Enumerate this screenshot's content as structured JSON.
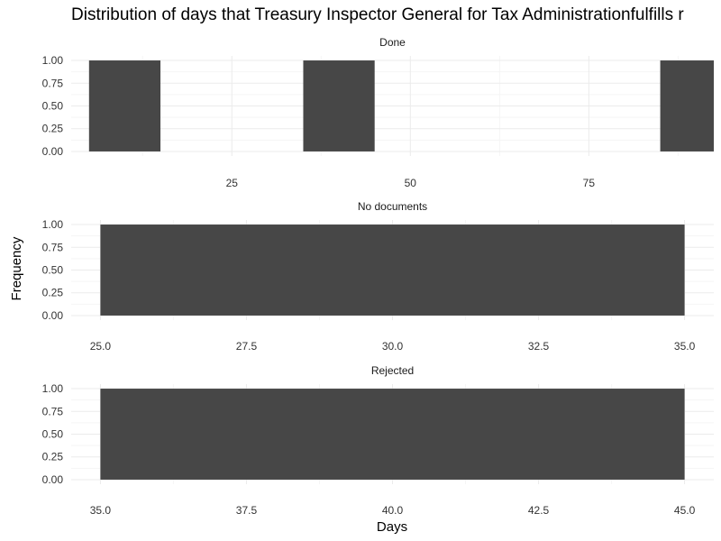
{
  "chart_data": {
    "type": "bar",
    "title": "Distribution of days that Treasury Inspector General for Tax Administrationfulfills r",
    "xlabel": "Days",
    "ylabel": "Frequency",
    "grid": true,
    "colors": {
      "bar": "#474747",
      "grid_major": "#ebebeb",
      "grid_minor": "#f5f5f5"
    },
    "panels": [
      {
        "label": "Done",
        "xlim": [
          2.5,
          92.5
        ],
        "x_ticks": [
          25,
          50,
          75
        ],
        "x_tick_labels": [
          "25",
          "50",
          "75"
        ],
        "ylim": [
          0,
          1
        ],
        "y_ticks": [
          0,
          0.25,
          0.5,
          0.75,
          1
        ],
        "y_tick_labels": [
          "0.00",
          "0.25",
          "0.50",
          "0.75",
          "1.00"
        ],
        "bars": [
          {
            "x0": 5,
            "x1": 15,
            "value": 1
          },
          {
            "x0": 35,
            "x1": 45,
            "value": 1
          },
          {
            "x0": 85,
            "x1": 95,
            "value": 1
          }
        ]
      },
      {
        "label": "No documents",
        "xlim": [
          24.5,
          35.5
        ],
        "x_ticks": [
          25,
          27.5,
          30,
          32.5,
          35
        ],
        "x_tick_labels": [
          "25.0",
          "27.5",
          "30.0",
          "32.5",
          "35.0"
        ],
        "ylim": [
          0,
          1
        ],
        "y_ticks": [
          0,
          0.25,
          0.5,
          0.75,
          1
        ],
        "y_tick_labels": [
          "0.00",
          "0.25",
          "0.50",
          "0.75",
          "1.00"
        ],
        "bars": [
          {
            "x0": 25,
            "x1": 35,
            "value": 1
          }
        ]
      },
      {
        "label": "Rejected",
        "xlim": [
          34.5,
          45.5
        ],
        "x_ticks": [
          35,
          37.5,
          40,
          42.5,
          45
        ],
        "x_tick_labels": [
          "35.0",
          "37.5",
          "40.0",
          "42.5",
          "45.0"
        ],
        "ylim": [
          0,
          1
        ],
        "y_ticks": [
          0,
          0.25,
          0.5,
          0.75,
          1
        ],
        "y_tick_labels": [
          "0.00",
          "0.25",
          "0.50",
          "0.75",
          "1.00"
        ],
        "bars": [
          {
            "x0": 35,
            "x1": 45,
            "value": 1
          }
        ]
      }
    ]
  }
}
